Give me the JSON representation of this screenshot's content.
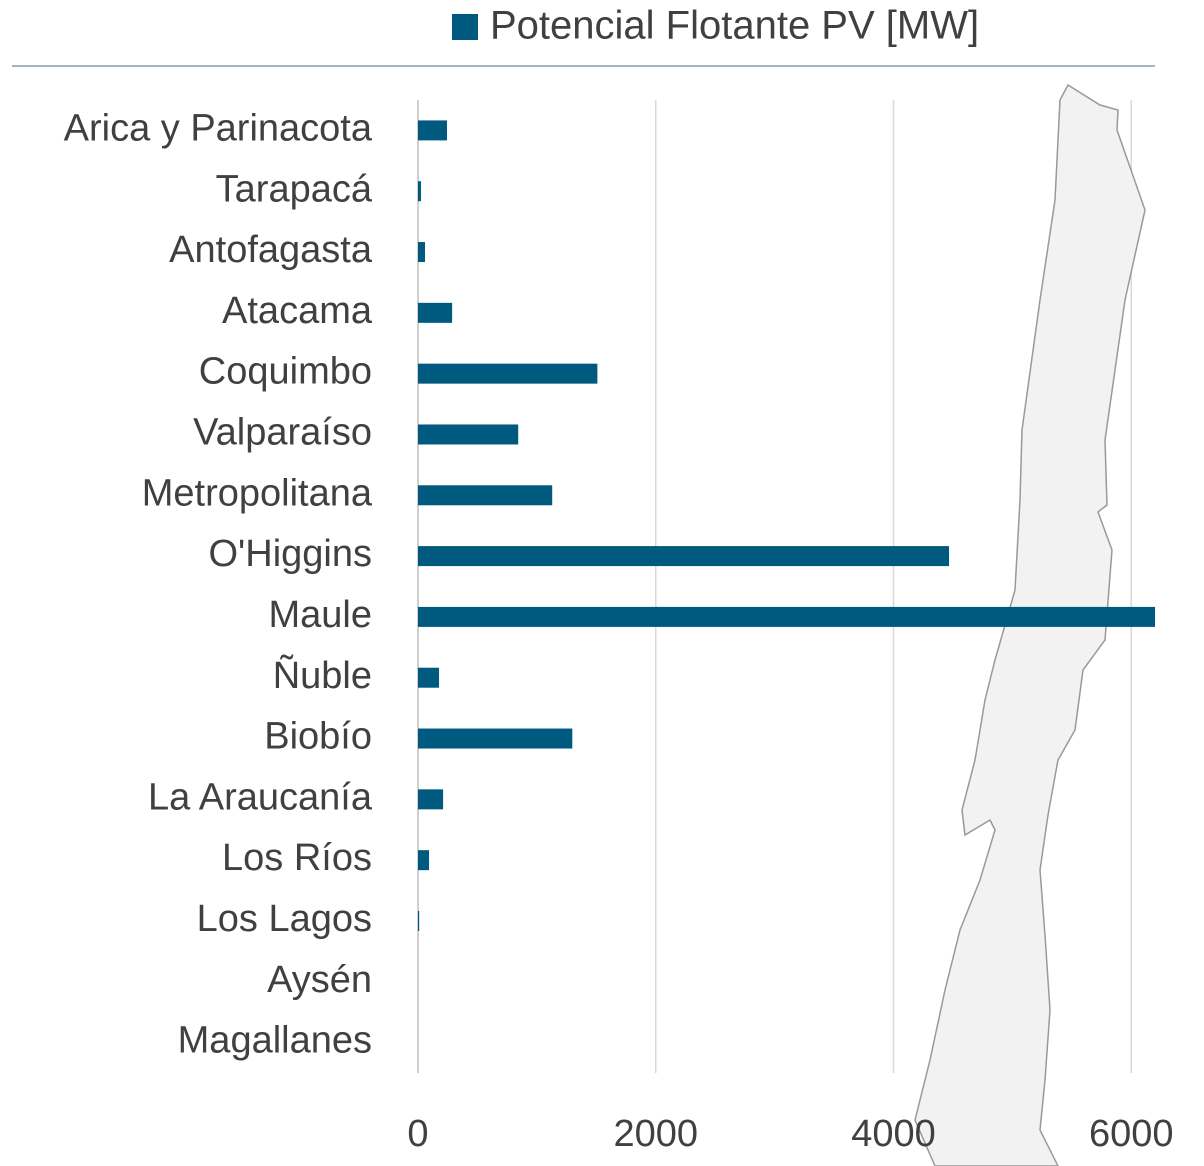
{
  "chart_data": {
    "type": "bar",
    "orientation": "horizontal",
    "legend_label": "Potencial Flotante PV [MW]",
    "categories": [
      "Arica y Parinacota",
      "Tarapacá",
      "Antofagasta",
      "Atacama",
      "Coquimbo",
      "Valparaíso",
      "Metropolitana",
      "O'Higgins",
      "Maule",
      "Ñuble",
      "Biobío",
      "La Araucanía",
      "Los Ríos",
      "Los Lagos",
      "Aysén",
      "Magallanes"
    ],
    "values": [
      244,
      25,
      59,
      287,
      1509,
      843,
      1129,
      4467,
      6200,
      177,
      1298,
      211,
      93,
      10,
      0,
      0
    ],
    "color": "#005a7f",
    "xlim": [
      0,
      6200
    ],
    "xticks": [
      0,
      2000,
      4000,
      6000
    ],
    "grid": true
  }
}
